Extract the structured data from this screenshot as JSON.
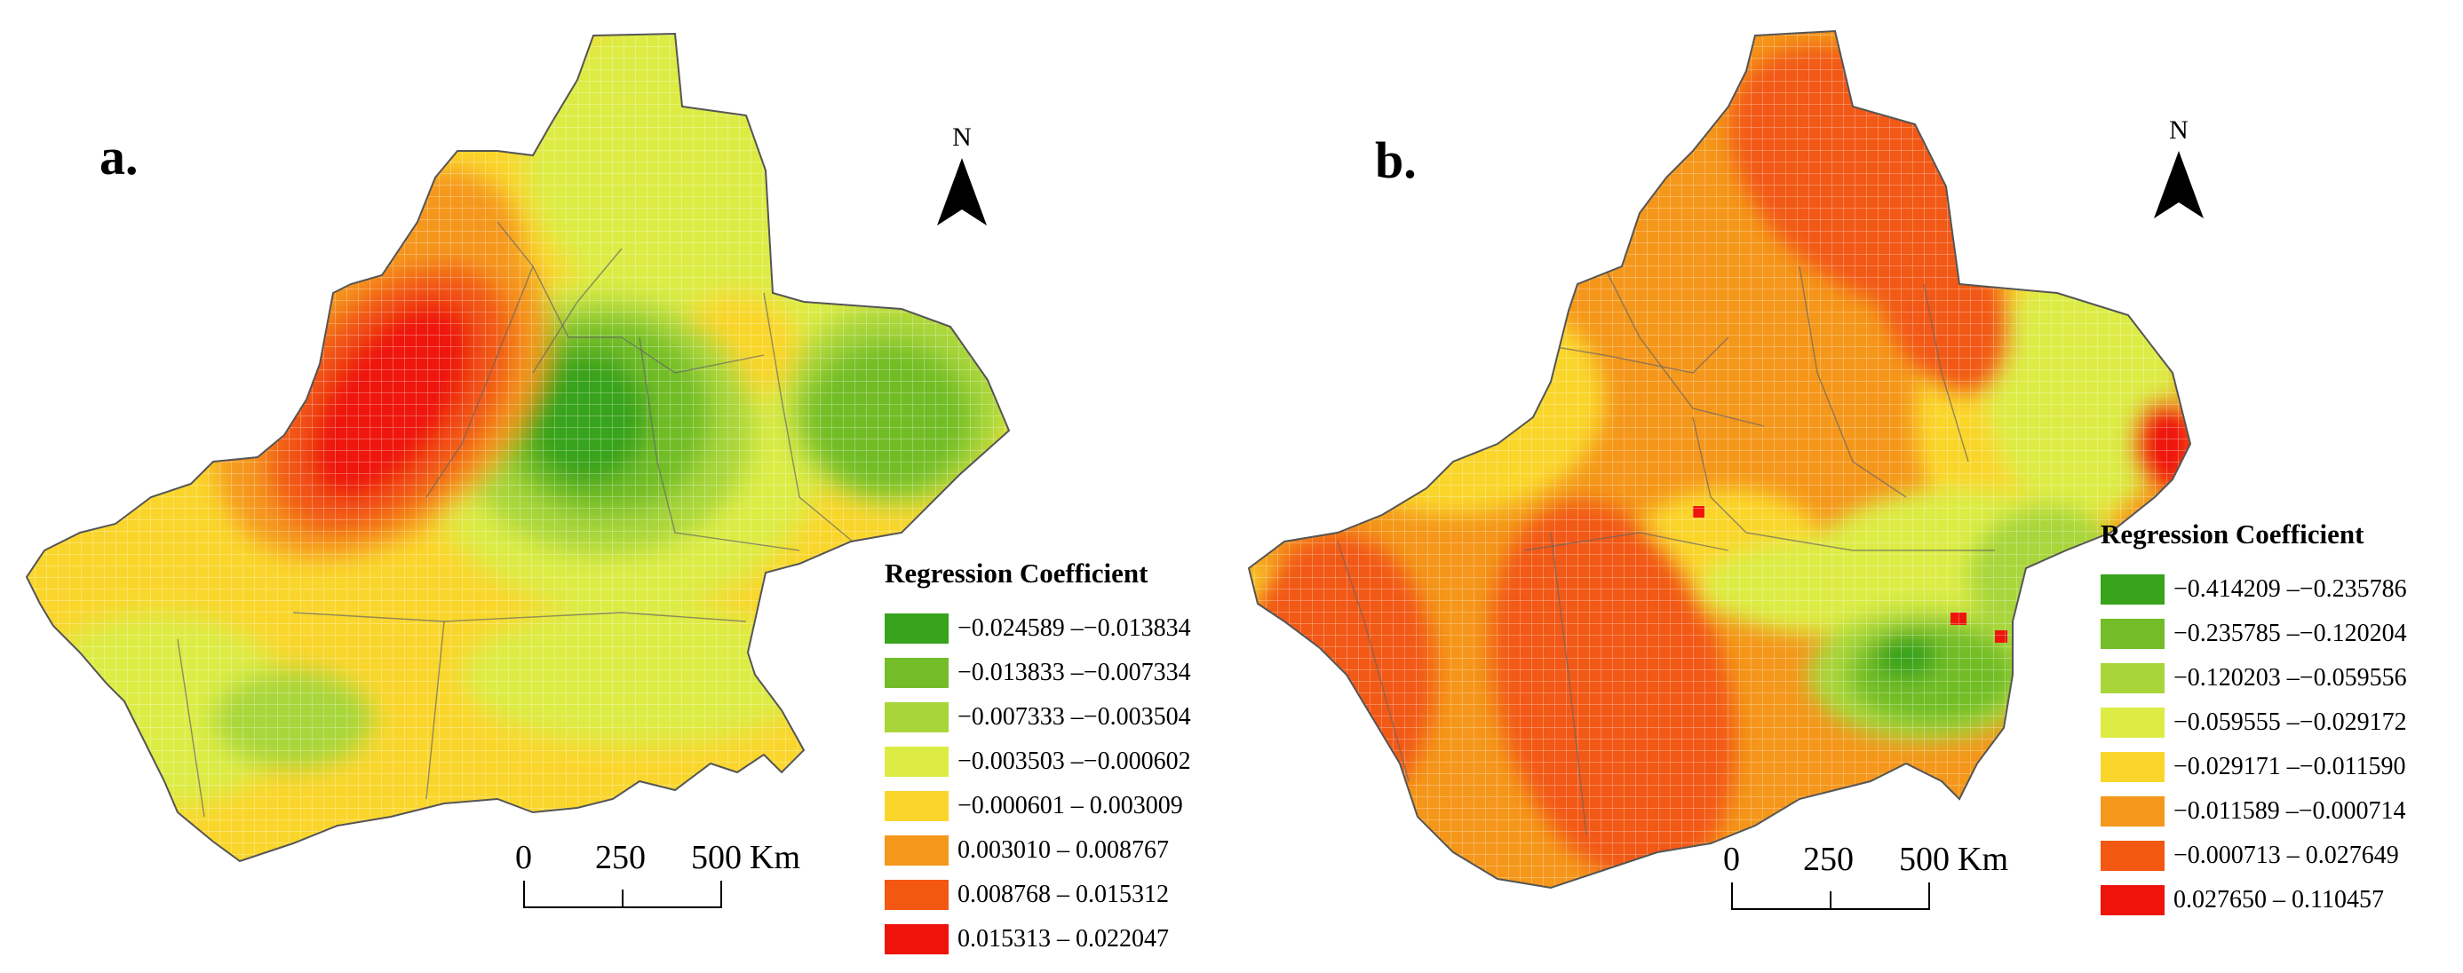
{
  "figure": {
    "panels": [
      {
        "id": "a",
        "label": "a.",
        "north_label": "N",
        "legend_title": "Regression Coefficient",
        "legend": [
          {
            "range": "−0.024589 –−0.013834",
            "color": "#38a31c"
          },
          {
            "range": "−0.013833 –−0.007334",
            "color": "#72bd28"
          },
          {
            "range": "−0.007333 –−0.003504",
            "color": "#a8d63a"
          },
          {
            "range": "−0.003503 –−0.000602",
            "color": "#dcec45"
          },
          {
            "range": "−0.000601 – 0.003009",
            "color": "#fad62c"
          },
          {
            "range": "0.003010 – 0.008767",
            "color": "#f5971a"
          },
          {
            "range": "0.008768 – 0.015312",
            "color": "#f25812"
          },
          {
            "range": "0.015313 – 0.022047",
            "color": "#ee140c"
          }
        ],
        "scale": {
          "ticks": [
            "0",
            "250",
            "500"
          ],
          "unit": "Km"
        }
      },
      {
        "id": "b",
        "label": "b.",
        "north_label": "N",
        "legend_title": "Regression Coefficient",
        "legend": [
          {
            "range": "−0.414209 –−0.235786",
            "color": "#38a31c"
          },
          {
            "range": "−0.235785 –−0.120204",
            "color": "#72bd28"
          },
          {
            "range": "−0.120203 –−0.059556",
            "color": "#a8d63a"
          },
          {
            "range": "−0.059555 –−0.029172",
            "color": "#dcec45"
          },
          {
            "range": "−0.029171 –−0.011590",
            "color": "#fad62c"
          },
          {
            "range": "−0.011589 –−0.000714",
            "color": "#f5971a"
          },
          {
            "range": "−0.000713 – 0.027649",
            "color": "#f25812"
          },
          {
            "range": "0.027650 – 0.110457",
            "color": "#ee140c"
          }
        ],
        "scale": {
          "ticks": [
            "0",
            "250",
            "500"
          ],
          "unit": "Km"
        }
      }
    ]
  }
}
